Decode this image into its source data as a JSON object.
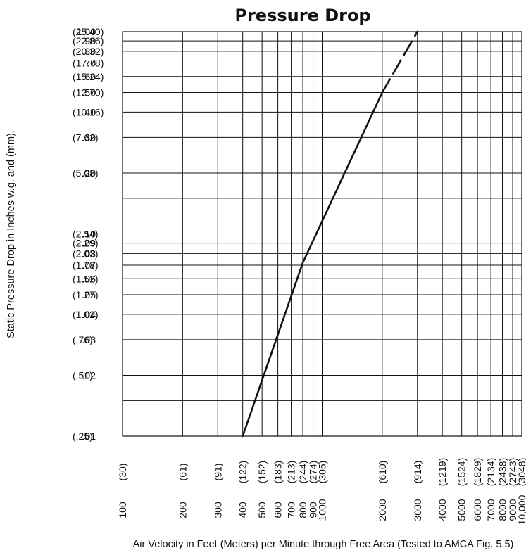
{
  "chart_data": {
    "type": "line",
    "title": "Pressure Drop",
    "xlabel": "Air Velocity in Feet (Meters) per Minute through Free Area (Tested to AMCA Fig. 5.5)",
    "ylabel": "Static Pressure Drop in Inches w.g. and (mm).",
    "x_scale": "log",
    "y_scale": "log",
    "xlim": [
      100,
      10000
    ],
    "ylim": [
      0.01,
      1.0
    ],
    "grid": true,
    "x_ticks": [
      {
        "value": 100,
        "label": "100",
        "metric": "(30)"
      },
      {
        "value": 200,
        "label": "200",
        "metric": "(61)"
      },
      {
        "value": 300,
        "label": "300",
        "metric": "(91)"
      },
      {
        "value": 400,
        "label": "400",
        "metric": "(122)"
      },
      {
        "value": 500,
        "label": "500",
        "metric": "(152)"
      },
      {
        "value": 600,
        "label": "600",
        "metric": "(183)"
      },
      {
        "value": 700,
        "label": "700",
        "metric": "(213)"
      },
      {
        "value": 800,
        "label": "800",
        "metric": "(244)"
      },
      {
        "value": 900,
        "label": "900",
        "metric": "(274)"
      },
      {
        "value": 1000,
        "label": "1000",
        "metric": "(305)"
      },
      {
        "value": 2000,
        "label": "2000",
        "metric": "(610)"
      },
      {
        "value": 3000,
        "label": "3000",
        "metric": "(914)"
      },
      {
        "value": 4000,
        "label": "4000",
        "metric": "(1219)"
      },
      {
        "value": 5000,
        "label": "5000",
        "metric": "(1524)"
      },
      {
        "value": 6000,
        "label": "6000",
        "metric": "(1829)"
      },
      {
        "value": 7000,
        "label": "7000",
        "metric": "(2134)"
      },
      {
        "value": 8000,
        "label": "8000",
        "metric": "(2438)"
      },
      {
        "value": 9000,
        "label": "9000",
        "metric": "(2743)"
      },
      {
        "value": 10000,
        "label": "10,000",
        "metric": "(3048)"
      }
    ],
    "y_ticks": [
      {
        "value": 1.0,
        "label": "1.00",
        "metric": "(25.40)"
      },
      {
        "value": 0.9,
        "label": ".90",
        "metric": "(22.86)"
      },
      {
        "value": 0.8,
        "label": ".80",
        "metric": "(20.32)"
      },
      {
        "value": 0.7,
        "label": ".70",
        "metric": "(17.78)"
      },
      {
        "value": 0.6,
        "label": ".60",
        "metric": "(15.24)"
      },
      {
        "value": 0.5,
        "label": ".50",
        "metric": "(12.70)"
      },
      {
        "value": 0.4,
        "label": ".40",
        "metric": "(10.16)"
      },
      {
        "value": 0.3,
        "label": ".30",
        "metric": "(7.62)"
      },
      {
        "value": 0.2,
        "label": ".20",
        "metric": "(5.08)"
      },
      {
        "value": 0.1,
        "label": ".10",
        "metric": "(2.54)"
      },
      {
        "value": 0.09,
        "label": ".09",
        "metric": "(2.29)"
      },
      {
        "value": 0.08,
        "label": ".08",
        "metric": "(2.03)"
      },
      {
        "value": 0.07,
        "label": ".07",
        "metric": "(1.78)"
      },
      {
        "value": 0.06,
        "label": ".06",
        "metric": "(1.52)"
      },
      {
        "value": 0.05,
        "label": ".05",
        "metric": "(1.27)"
      },
      {
        "value": 0.04,
        "label": ".04",
        "metric": "(1.02)"
      },
      {
        "value": 0.03,
        "label": ".03",
        "metric": "(.76)"
      },
      {
        "value": 0.02,
        "label": ".02",
        "metric": "(.51)"
      },
      {
        "value": 0.01,
        "label": ".01",
        "metric": "(.25)"
      }
    ],
    "extra_gridlines_y": [
      0.15,
      0.015
    ],
    "series": [
      {
        "style": "solid",
        "points": [
          [
            400,
            0.01
          ],
          [
            800,
            0.072
          ],
          [
            2000,
            0.5
          ]
        ]
      },
      {
        "style": "dashed",
        "points": [
          [
            2000,
            0.5
          ],
          [
            3000,
            1.0
          ]
        ]
      }
    ]
  }
}
